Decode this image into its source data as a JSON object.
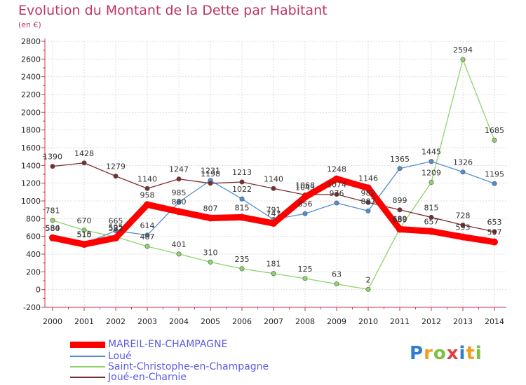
{
  "chart_data": {
    "type": "line",
    "title": "Evolution du Montant de la Dette par Habitant",
    "subtitle": "(en €)",
    "xlabel": "",
    "ylabel": "",
    "x": [
      "2000",
      "2001",
      "2002",
      "2003",
      "2004",
      "2005",
      "2006",
      "2007",
      "2008",
      "2009",
      "2010",
      "2011",
      "2012",
      "2013",
      "2014"
    ],
    "yticks": [
      "-200",
      "0",
      "200",
      "400",
      "600",
      "800",
      "1000",
      "1200",
      "1400",
      "1600",
      "1800",
      "2000",
      "2200",
      "2400",
      "2600",
      "2800"
    ],
    "ylim": [
      -200,
      2800
    ],
    "grid": true,
    "legend_position": "bottom-left",
    "series": [
      {
        "name": "MAREIL-EN-CHAMPAGNE",
        "color": "#ff0000",
        "values": [
          584,
          510,
          582,
          958,
          880,
          807,
          815,
          747,
          1043,
          1248,
          1146,
          680,
          657,
          593,
          537
        ],
        "labels": [
          "584",
          "510",
          "582",
          "958",
          "880",
          "807",
          "815",
          "747",
          "1043",
          "1248",
          "1146",
          "680",
          "657",
          "593",
          "537"
        ]
      },
      {
        "name": "Loué",
        "color": "#4f8fd1",
        "values": [
          580,
          515,
          665,
          614,
          985,
          1231,
          1022,
          791,
          856,
          976,
          887,
          1365,
          1445,
          1326,
          1195
        ],
        "labels": [
          "580",
          "515",
          "665",
          "614",
          "985",
          "1231",
          "1022",
          "791",
          "856",
          "976",
          "887",
          "1365",
          "1445",
          "1326",
          "1195"
        ]
      },
      {
        "name": "Saint-Christophe-en-Champagne",
        "color": "#8fd36a",
        "values": [
          781,
          670,
          595,
          487,
          401,
          310,
          235,
          181,
          125,
          63,
          2,
          689,
          1209,
          2594,
          1685
        ],
        "labels": [
          "781",
          "670",
          "595",
          "487",
          "401",
          "310",
          "235",
          "181",
          "125",
          "63",
          "2",
          "689",
          "1209",
          "2594",
          "1685"
        ]
      },
      {
        "name": "Joué-en-Charnie",
        "color": "#7a2e2e",
        "values": [
          1390,
          1428,
          1279,
          1140,
          1247,
          1198,
          1213,
          1140,
          1068,
          1074,
          982,
          899,
          815,
          728,
          653
        ],
        "labels": [
          "1390",
          "1428",
          "1279",
          "1140",
          "1247",
          "1198",
          "1213",
          "1140",
          "1068",
          "1074",
          "982",
          "899",
          "815",
          "728",
          "653"
        ]
      }
    ],
    "logo": "Proxiti",
    "logo_colors": [
      "#2e7dd1",
      "#f0a020",
      "#7cc13d",
      "#e04040"
    ]
  }
}
